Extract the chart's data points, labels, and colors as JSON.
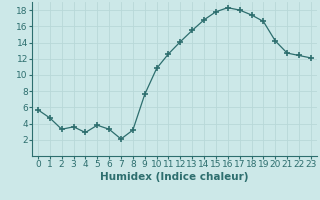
{
  "x": [
    0,
    1,
    2,
    3,
    4,
    5,
    6,
    7,
    8,
    9,
    10,
    11,
    12,
    13,
    14,
    15,
    16,
    17,
    18,
    19,
    20,
    21,
    22,
    23
  ],
  "y": [
    5.7,
    4.7,
    3.3,
    3.6,
    2.9,
    3.8,
    3.3,
    2.1,
    3.2,
    7.6,
    10.8,
    12.6,
    14.1,
    15.5,
    16.8,
    17.8,
    18.3,
    18.0,
    17.4,
    16.6,
    14.2,
    12.7,
    12.4,
    12.1
  ],
  "line_color": "#2d6e6e",
  "marker": "+",
  "marker_size": 4,
  "background_color": "#cce8e8",
  "grid_color": "#b8d8d8",
  "xlabel": "Humidex (Indice chaleur)",
  "xlim": [
    -0.5,
    23.5
  ],
  "ylim": [
    0,
    19
  ],
  "yticks": [
    2,
    4,
    6,
    8,
    10,
    12,
    14,
    16,
    18
  ],
  "xticks": [
    0,
    1,
    2,
    3,
    4,
    5,
    6,
    7,
    8,
    9,
    10,
    11,
    12,
    13,
    14,
    15,
    16,
    17,
    18,
    19,
    20,
    21,
    22,
    23
  ],
  "tick_fontsize": 6.5,
  "xlabel_fontsize": 7.5
}
